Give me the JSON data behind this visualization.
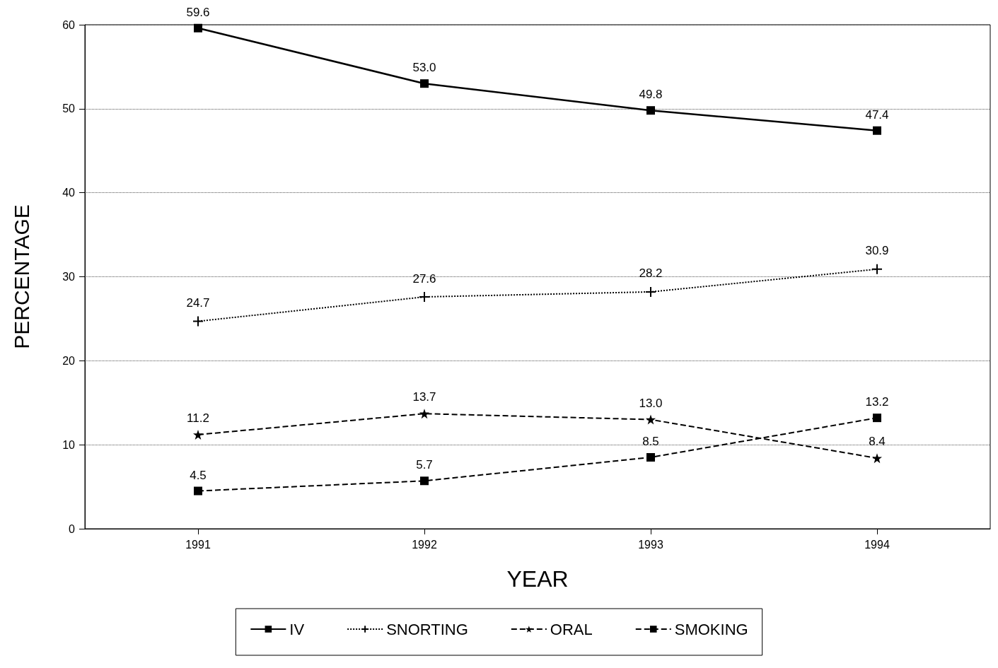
{
  "chart_data": {
    "type": "line",
    "xlabel": "YEAR",
    "ylabel": "PERCENTAGE",
    "x": [
      1991,
      1992,
      1993,
      1994
    ],
    "xlim": [
      1990.5,
      1994.5
    ],
    "xticks": [
      1991,
      1992,
      1993,
      1994
    ],
    "ylim": [
      0,
      60
    ],
    "yticks": [
      0,
      10,
      20,
      30,
      40,
      50,
      60
    ],
    "grid": "y",
    "legend": "bottom",
    "series": [
      {
        "name": "IV",
        "color": "#000000",
        "marker": "square",
        "line_style": "solid",
        "values": [
          59.6,
          53.0,
          49.8,
          47.4
        ],
        "value_labels": [
          "59.6",
          "53.0",
          "49.8",
          "47.4"
        ]
      },
      {
        "name": "SNORTING",
        "color": "#000000",
        "marker": "cross",
        "line_style": "dotted",
        "values": [
          24.7,
          27.6,
          28.2,
          30.9
        ],
        "value_labels": [
          "24.7",
          "27.6",
          "28.2",
          "30.9"
        ]
      },
      {
        "name": "ORAL",
        "color": "#000000",
        "marker": "star",
        "line_style": "dashed",
        "values": [
          11.2,
          13.7,
          13.0,
          8.4
        ],
        "value_labels": [
          "11.2",
          "13.7",
          "13.0",
          "8.4"
        ]
      },
      {
        "name": "SMOKING",
        "color": "#000000",
        "marker": "square",
        "line_style": "dashed",
        "values": [
          4.5,
          5.7,
          8.5,
          13.2
        ],
        "value_labels": [
          "4.5",
          "5.7",
          "8.5",
          "13.2"
        ]
      }
    ]
  }
}
